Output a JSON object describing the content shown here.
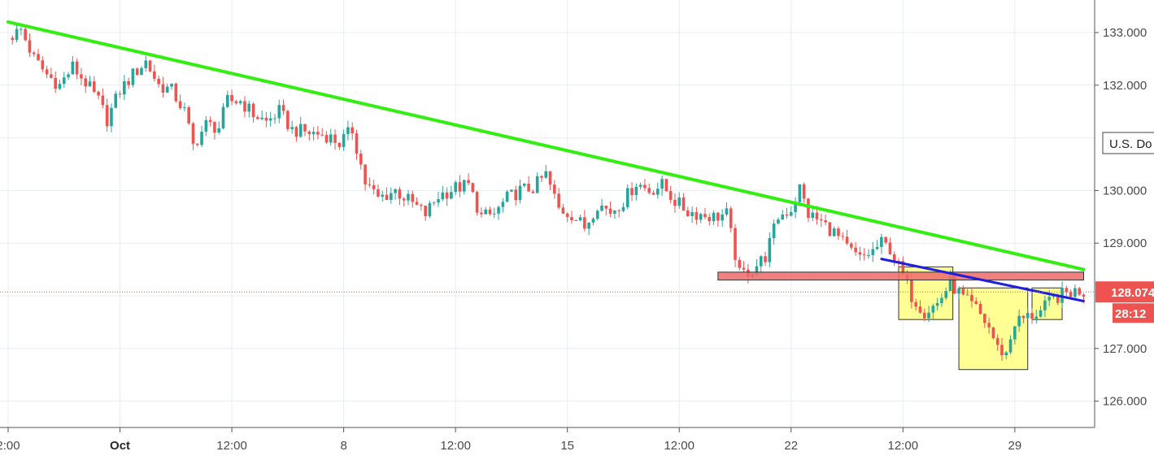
{
  "chart_data": {
    "type": "candlestick",
    "title": "",
    "symbol_label": "U.S. Do",
    "y_axis": {
      "range": [
        125.4,
        133.2
      ],
      "ticks": [
        "133.000",
        "132.000",
        "130.000",
        "129.000",
        "127.000",
        "126.000"
      ],
      "tick_values": [
        133,
        132,
        130,
        129,
        127,
        126
      ]
    },
    "x_axis": {
      "ticks": [
        "2:00",
        "Oct",
        "12:00",
        "8",
        "12:00",
        "15",
        "12:00",
        "22",
        "12:00",
        "29"
      ],
      "bold_ticks": [
        "Oct"
      ],
      "tick_index": [
        0,
        13,
        26,
        39,
        52,
        65,
        78,
        91,
        104,
        117
      ],
      "index_range": [
        0,
        125
      ]
    },
    "current_price": "128.074",
    "countdown": "28:12",
    "price_line_value": 128.074,
    "colors": {
      "up": "#26a69a",
      "down": "#ef5350",
      "trendline": "#33ee11",
      "neckline": "#1f1fdd",
      "resistance": "#ee6a6a",
      "boxes": "#ffff88",
      "tag": "#ef5350",
      "grid": "#e8eef3"
    },
    "close_path": [
      [
        0,
        132.9
      ],
      [
        1.5,
        133.05
      ],
      [
        3,
        132.5
      ],
      [
        4.5,
        132.2
      ],
      [
        6,
        132.0
      ],
      [
        7.5,
        132.35
      ],
      [
        9,
        132.05
      ],
      [
        10.5,
        131.7
      ],
      [
        11.5,
        131.35
      ],
      [
        13,
        131.9
      ],
      [
        14.5,
        132.2
      ],
      [
        16,
        132.45
      ],
      [
        17.5,
        132.0
      ],
      [
        19,
        131.9
      ],
      [
        20.5,
        131.5
      ],
      [
        21.5,
        130.85
      ],
      [
        23,
        131.25
      ],
      [
        24.5,
        131.2
      ],
      [
        25.5,
        131.7
      ],
      [
        27,
        131.7
      ],
      [
        28.5,
        131.45
      ],
      [
        30,
        131.3
      ],
      [
        31.5,
        131.5
      ],
      [
        33,
        131.15
      ],
      [
        35,
        131.1
      ],
      [
        37,
        131.05
      ],
      [
        38.5,
        130.9
      ],
      [
        40,
        131.15
      ],
      [
        41.5,
        130.15
      ],
      [
        43,
        129.85
      ],
      [
        45,
        130.0
      ],
      [
        47,
        129.75
      ],
      [
        48.5,
        129.55
      ],
      [
        50,
        129.9
      ],
      [
        52,
        130.05
      ],
      [
        53.5,
        130.1
      ],
      [
        55,
        129.5
      ],
      [
        56.5,
        129.55
      ],
      [
        58,
        129.85
      ],
      [
        59.5,
        130.0
      ],
      [
        61,
        130.05
      ],
      [
        62.5,
        130.3
      ],
      [
        64,
        129.65
      ],
      [
        65.5,
        129.55
      ],
      [
        67,
        129.3
      ],
      [
        68.5,
        129.75
      ],
      [
        70,
        129.6
      ],
      [
        71.5,
        129.8
      ],
      [
        73,
        130.15
      ],
      [
        74.5,
        130.0
      ],
      [
        76,
        130.1
      ],
      [
        77.5,
        129.8
      ],
      [
        79,
        129.6
      ],
      [
        80.5,
        129.55
      ],
      [
        82,
        129.5
      ],
      [
        83.5,
        129.55
      ],
      [
        85,
        128.4
      ],
      [
        86.5,
        128.5
      ],
      [
        88,
        128.75
      ],
      [
        89.5,
        129.5
      ],
      [
        91,
        129.65
      ],
      [
        92,
        130.05
      ],
      [
        93,
        129.55
      ],
      [
        94.5,
        129.4
      ],
      [
        96,
        129.2
      ],
      [
        97.5,
        128.9
      ],
      [
        99,
        128.7
      ],
      [
        100.5,
        128.85
      ],
      [
        101.5,
        129.0
      ],
      [
        102.5,
        128.9
      ],
      [
        103.5,
        128.55
      ],
      [
        105,
        128.0
      ],
      [
        106.5,
        127.7
      ],
      [
        108,
        127.85
      ],
      [
        109.5,
        128.25
      ],
      [
        111,
        127.95
      ],
      [
        112.5,
        127.75
      ],
      [
        114,
        127.4
      ],
      [
        115,
        127.0
      ],
      [
        116,
        126.9
      ],
      [
        117,
        127.5
      ],
      [
        118.5,
        127.6
      ],
      [
        120,
        127.7
      ],
      [
        121.5,
        127.95
      ],
      [
        123,
        128.05
      ],
      [
        124.5,
        128.1
      ],
      [
        125,
        128.074
      ]
    ],
    "annotations": {
      "trendline": [
        [
          0,
          133.2
        ],
        [
          125,
          128.5
        ]
      ],
      "neckline": [
        [
          101.5,
          128.7
        ],
        [
          125,
          127.9
        ]
      ],
      "resistance_zone": {
        "x": [
          82.5,
          125
        ],
        "y": [
          128.3,
          128.45
        ]
      },
      "left_shoulder": {
        "x": [
          103.5,
          109.8
        ],
        "y": [
          127.55,
          128.55
        ]
      },
      "head": {
        "x": [
          110.5,
          118.5
        ],
        "y": [
          126.6,
          128.15
        ]
      },
      "right_shoulder": {
        "x": [
          119,
          122.5
        ],
        "y": [
          127.55,
          128.15
        ]
      }
    }
  }
}
